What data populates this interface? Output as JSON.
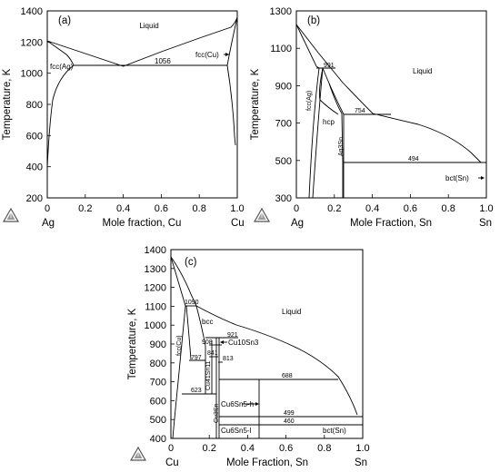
{
  "chart_data": [
    {
      "type": "line",
      "panel": "(a)",
      "ylabel": "Temperature, K",
      "xlabel": "Mole fraction, Cu",
      "left_element": "Ag",
      "right_element": "Cu",
      "xlim": [
        0,
        1
      ],
      "ylim": [
        200,
        1400
      ],
      "xticks": [
        "0",
        "0.2",
        "0.4",
        "0.6",
        "0.8",
        "1.0"
      ],
      "yticks": [
        "200",
        "400",
        "600",
        "800",
        "1000",
        "1200",
        "1400"
      ],
      "labels": [
        {
          "text": "Liquid",
          "x": 0.54,
          "y": 1290
        },
        {
          "text": "fcc(Ag)",
          "x": 0.07,
          "y": 1075
        },
        {
          "text": "fcc(Cu)",
          "x": 0.84,
          "y": 1130
        },
        {
          "text": "1056",
          "x": 0.65,
          "y": 1063
        }
      ],
      "series": [
        {
          "x": [
            0,
            0.4
          ],
          "y": [
            1235,
            1056
          ]
        },
        {
          "x": [
            0.4,
            0.6,
            0.8,
            0.95,
            1.0
          ],
          "y": [
            1056,
            1150,
            1240,
            1300,
            1357
          ]
        },
        {
          "x": [
            0,
            0.05,
            0.1,
            0.14
          ],
          "y": [
            1235,
            1170,
            1100,
            1056
          ]
        },
        {
          "x": [
            0,
            0.02,
            0.05,
            0.1,
            0.14
          ],
          "y": [
            400,
            620,
            820,
            980,
            1056
          ]
        },
        {
          "x": [
            0.14,
            0.95
          ],
          "y": [
            1056,
            1056
          ]
        },
        {
          "x": [
            0.95,
            0.98,
            1.0
          ],
          "y": [
            1056,
            1200,
            1357
          ]
        },
        {
          "x": [
            0.95,
            0.98,
            0.995,
            1.0
          ],
          "y": [
            1056,
            900,
            700,
            500
          ]
        }
      ]
    },
    {
      "type": "line",
      "panel": "(b)",
      "ylabel": "Temperature, K",
      "xlabel": "Mole Fraction, Sn",
      "left_element": "Ag",
      "right_element": "Sn",
      "xlim": [
        0,
        1
      ],
      "ylim": [
        300,
        1300
      ],
      "xticks": [
        "0",
        "0.2",
        "0.4",
        "0.6",
        "0.8",
        "1.0"
      ],
      "yticks": [
        "300",
        "500",
        "700",
        "900",
        "1100",
        "1300"
      ],
      "labels": [
        {
          "text": "Liquid",
          "x": 0.64,
          "y": 1020
        },
        {
          "text": "fcc(Ag)",
          "x": 0.065,
          "y": 810
        },
        {
          "text": "hcp",
          "x": 0.16,
          "y": 725
        },
        {
          "text": "Ag3Sn",
          "x": 0.225,
          "y": 590
        },
        {
          "text": "991",
          "x": 0.16,
          "y": 1000
        },
        {
          "text": "754",
          "x": 0.33,
          "y": 765
        },
        {
          "text": "494",
          "x": 0.6,
          "y": 505
        },
        {
          "text": "bct(Sn)",
          "x": 0.88,
          "y": 440
        }
      ],
      "series": [
        {
          "x": [
            0,
            0.1,
            0.2,
            0.3,
            0.4,
            0.5,
            0.6,
            0.7,
            0.8,
            0.9,
            0.96
          ],
          "y": [
            1235,
            1130,
            1035,
            940,
            860,
            780,
            720,
            660,
            600,
            540,
            500
          ]
        },
        {
          "x": [
            0,
            0.1,
            0.2,
            0.3,
            0.4,
            0.5,
            0.6,
            0.7,
            0.8,
            0.9,
            0.96
          ],
          "y": [
            1235,
            1120,
            990,
            860,
            760,
            700,
            640,
            580,
            530,
            505,
            494
          ]
        }
      ]
    },
    {
      "type": "line",
      "panel": "(c)",
      "ylabel": "Temperature, K",
      "xlabel": "Mole Fraction, Sn",
      "left_element": "Cu",
      "right_element": "Sn",
      "xlim": [
        0,
        1
      ],
      "ylim": [
        400,
        1400
      ],
      "xticks": [
        "0",
        "0.2",
        "0.4",
        "0.6",
        "0.8",
        "1.0"
      ],
      "yticks": [
        "400",
        "500",
        "600",
        "700",
        "800",
        "900",
        "1000",
        "1100",
        "1200",
        "1300",
        "1400"
      ],
      "labels": [
        {
          "text": "Liquid",
          "x": 0.65,
          "y": 1060
        },
        {
          "text": "fcc(Cu)",
          "x": 0.04,
          "y": 900
        },
        {
          "text": "bcc",
          "x": 0.19,
          "y": 1010
        },
        {
          "text": "1090",
          "x": 0.1,
          "y": 1095
        },
        {
          "text": "921",
          "x": 0.33,
          "y": 935
        },
        {
          "text": "908",
          "x": 0.19,
          "y": 905
        },
        {
          "text": "841",
          "x": 0.21,
          "y": 845
        },
        {
          "text": "813",
          "x": 0.28,
          "y": 815
        },
        {
          "text": "797",
          "x": 0.13,
          "y": 800
        },
        {
          "text": "688",
          "x": 0.6,
          "y": 700
        },
        {
          "text": "623",
          "x": 0.14,
          "y": 627
        },
        {
          "text": "499",
          "x": 0.6,
          "y": 507
        },
        {
          "text": "460",
          "x": 0.6,
          "y": 466
        },
        {
          "text": "Cu10Sn3",
          "x": 0.31,
          "y": 872
        },
        {
          "text": "Cu41Sn11",
          "x": 0.205,
          "y": 720
        },
        {
          "text": "Cu3Sn",
          "x": 0.235,
          "y": 535
        },
        {
          "text": "Cu6Sn5-h",
          "x": 0.36,
          "y": 542
        },
        {
          "text": "Cu6Sn5-l",
          "x": 0.36,
          "y": 432
        },
        {
          "text": "bct(Sn)",
          "x": 0.79,
          "y": 432
        }
      ],
      "series": [
        {
          "x": [
            0,
            0.04,
            0.08,
            0.13
          ],
          "y": [
            1357,
            1260,
            1160,
            1090
          ]
        },
        {
          "x": [
            0.13,
            0.2,
            0.3,
            0.4,
            0.5,
            0.6,
            0.7,
            0.8,
            0.9,
            1.0
          ],
          "y": [
            1090,
            1010,
            940,
            900,
            860,
            810,
            760,
            688,
            580,
            505
          ]
        }
      ]
    }
  ],
  "logo": {
    "name": "thermo-calc-logo-icon"
  }
}
